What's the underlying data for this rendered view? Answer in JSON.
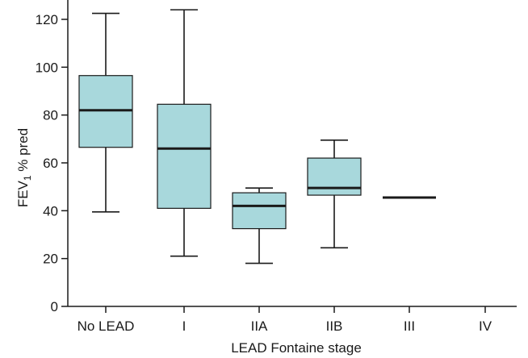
{
  "chart_data": {
    "type": "boxplot",
    "title": "",
    "xlabel": "LEAD Fontaine stage",
    "ylabel_main": "FEV",
    "ylabel_sub": "1",
    "ylabel_rest": " % pred",
    "ylim": [
      0,
      125
    ],
    "yticks": [
      0,
      20,
      40,
      60,
      80,
      100,
      120
    ],
    "box_color": "#a8d8dc",
    "line_color": "#1a1a1a",
    "categories": [
      "No LEAD",
      "I",
      "IIA",
      "IIB",
      "III",
      "IV"
    ],
    "boxes": [
      {
        "category": "No LEAD",
        "min": 39.5,
        "q1": 66.5,
        "median": 82,
        "q3": 96.5,
        "max": 122.5
      },
      {
        "category": "I",
        "min": 21,
        "q1": 41,
        "median": 66,
        "q3": 84.5,
        "max": 124
      },
      {
        "category": "IIA",
        "min": 18,
        "q1": 32.5,
        "median": 42,
        "q3": 47.5,
        "max": 49.5
      },
      {
        "category": "IIB",
        "min": 24.5,
        "q1": 46.5,
        "median": 49.5,
        "q3": 62,
        "max": 69.5
      },
      {
        "category": "III",
        "min": 45.5,
        "q1": 45.5,
        "median": 45.5,
        "q3": 45.5,
        "max": 45.5
      },
      {
        "category": "IV",
        "min": null,
        "q1": null,
        "median": null,
        "q3": null,
        "max": null
      }
    ]
  }
}
